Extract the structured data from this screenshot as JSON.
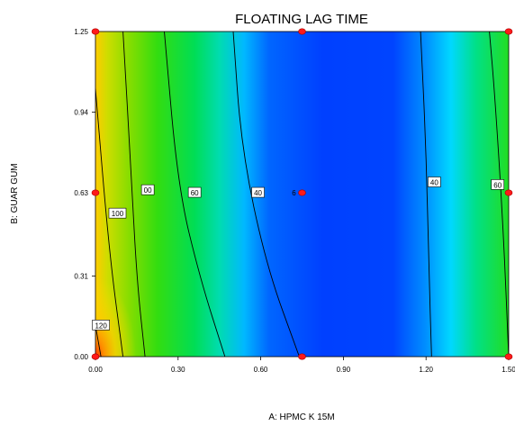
{
  "chart_data": {
    "type": "contour",
    "title": "FLOATING LAG TIME",
    "xlabel": "A: HPMC K 15M",
    "ylabel": "B: GUAR GUM",
    "xlim": [
      0,
      1.5
    ],
    "ylim": [
      0,
      1.25
    ],
    "x_ticks": [
      {
        "value": 0,
        "label": "0.00"
      },
      {
        "value": 0.3,
        "label": "0.30"
      },
      {
        "value": 0.6,
        "label": "0.60"
      },
      {
        "value": 0.9,
        "label": "0.90"
      },
      {
        "value": 1.2,
        "label": "1.20"
      },
      {
        "value": 1.5,
        "label": "1.50"
      }
    ],
    "y_ticks": [
      {
        "value": 0,
        "label": "0.00"
      },
      {
        "value": 0.31,
        "label": "0.31"
      },
      {
        "value": 0.63,
        "label": "0.63"
      },
      {
        "value": 0.94,
        "label": "0.94"
      },
      {
        "value": 1.25,
        "label": "1.25"
      }
    ],
    "contours": [
      {
        "label": "120",
        "points": [
          [
            0.02,
            0
          ],
          [
            0.0,
            0.12
          ]
        ],
        "label_at": [
          0.02,
          0.12
        ]
      },
      {
        "label": "100",
        "points": [
          [
            0.1,
            0
          ],
          [
            0.05,
            0.4
          ],
          [
            0.0,
            1.03
          ]
        ],
        "label_at": [
          0.08,
          0.55
        ]
      },
      {
        "label": "80",
        "points": [
          [
            0.18,
            0
          ],
          [
            0.15,
            0.3
          ],
          [
            0.13,
            0.7
          ],
          [
            0.1,
            1.25
          ]
        ],
        "label_at": [
          0.19,
          0.64
        ],
        "display": "00"
      },
      {
        "label": "60",
        "points": [
          [
            0.47,
            0
          ],
          [
            0.38,
            0.3
          ],
          [
            0.3,
            0.65
          ],
          [
            0.25,
            1.25
          ]
        ],
        "label_at": [
          0.36,
          0.63
        ]
      },
      {
        "label": "40",
        "points": [
          [
            0.74,
            0
          ],
          [
            0.62,
            0.35
          ],
          [
            0.53,
            0.8
          ],
          [
            0.5,
            1.25
          ]
        ],
        "label_at": [
          0.59,
          0.63
        ]
      },
      {
        "label": "40",
        "points": [
          [
            1.22,
            0
          ],
          [
            1.21,
            0.35
          ],
          [
            1.2,
            0.8
          ],
          [
            1.18,
            1.25
          ]
        ],
        "label_at": [
          1.23,
          0.67
        ]
      },
      {
        "label": "60",
        "points": [
          [
            1.5,
            0
          ],
          [
            1.48,
            0.5
          ],
          [
            1.45,
            1.0
          ],
          [
            1.43,
            1.25
          ]
        ],
        "label_at": [
          1.46,
          0.66
        ]
      }
    ],
    "design_points": [
      {
        "x": 0,
        "y": 0
      },
      {
        "x": 0.75,
        "y": 0
      },
      {
        "x": 1.5,
        "y": 0
      },
      {
        "x": 0,
        "y": 0.63
      },
      {
        "x": 0.75,
        "y": 0.63
      },
      {
        "x": 1.5,
        "y": 0.63
      },
      {
        "x": 0,
        "y": 1.25
      },
      {
        "x": 0.75,
        "y": 1.25
      },
      {
        "x": 1.5,
        "y": 1.25
      }
    ],
    "center_point_label": "6",
    "color_scale": [
      "#0033ff",
      "#0077ff",
      "#00c8ff",
      "#00e0a0",
      "#00dd33",
      "#66dd00",
      "#ddcc00",
      "#ff8800",
      "#ff4400"
    ]
  }
}
